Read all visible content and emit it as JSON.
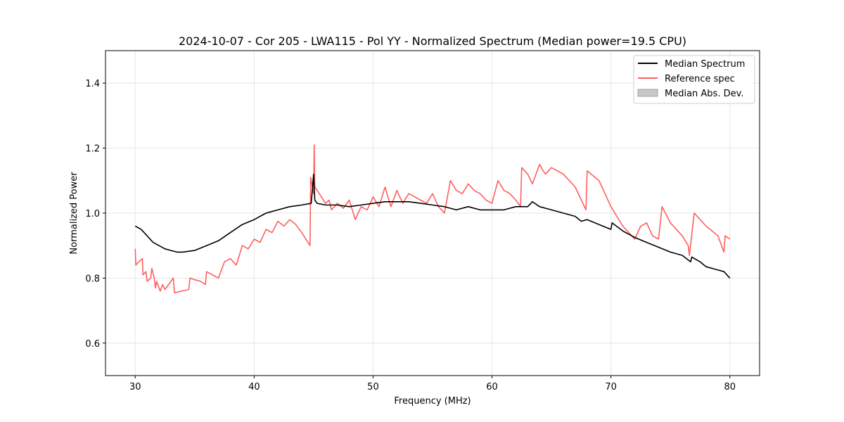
{
  "chart_data": {
    "type": "line",
    "title": "2024-10-07 - Cor 205 - LWA115 - Pol YY - Normalized Spectrum (Median power=19.5 CPU)",
    "xlabel": "Frequency (MHz)",
    "ylabel": "Normalized Power",
    "xlim": [
      27.5,
      82.5
    ],
    "ylim": [
      0.5,
      1.5
    ],
    "xticks": [
      30,
      40,
      50,
      60,
      70,
      80
    ],
    "yticks": [
      0.6,
      0.8,
      1.0,
      1.2,
      1.4
    ],
    "xtick_labels": [
      "30",
      "40",
      "50",
      "60",
      "70",
      "80"
    ],
    "ytick_labels": [
      "0.6",
      "0.8",
      "1.0",
      "1.2",
      "1.4"
    ],
    "grid": true,
    "legend_position": "top-right",
    "legend": [
      "Median Spectrum",
      "Reference spec",
      "Median Abs. Dev."
    ],
    "colors": {
      "median": "#000000",
      "reference": "#ff5f5f",
      "mad": "#c8c8c8"
    },
    "series": [
      {
        "name": "Median Spectrum",
        "x": [
          30.0,
          30.5,
          31.0,
          31.5,
          32.0,
          32.5,
          33.0,
          33.5,
          34.0,
          35.0,
          36.0,
          37.0,
          38.0,
          39.0,
          40.0,
          41.0,
          42.0,
          43.0,
          44.0,
          44.8,
          45.0,
          45.1,
          45.3,
          46.0,
          47.0,
          48.0,
          49.0,
          50.0,
          51.0,
          52.0,
          53.0,
          54.0,
          55.0,
          56.0,
          57.0,
          58.0,
          59.0,
          60.0,
          61.0,
          62.0,
          63.0,
          63.4,
          64.0,
          65.0,
          66.0,
          67.0,
          67.5,
          68.0,
          69.0,
          70.0,
          70.1,
          71.0,
          72.0,
          73.0,
          74.0,
          75.0,
          76.0,
          76.7,
          76.8,
          77.5,
          78.0,
          79.0,
          79.5,
          80.0
        ],
        "values": [
          0.96,
          0.95,
          0.93,
          0.91,
          0.9,
          0.89,
          0.885,
          0.88,
          0.88,
          0.885,
          0.9,
          0.915,
          0.94,
          0.965,
          0.98,
          1.0,
          1.01,
          1.02,
          1.025,
          1.03,
          1.12,
          1.04,
          1.03,
          1.025,
          1.025,
          1.02,
          1.025,
          1.03,
          1.035,
          1.035,
          1.035,
          1.03,
          1.025,
          1.02,
          1.01,
          1.02,
          1.01,
          1.01,
          1.01,
          1.02,
          1.02,
          1.035,
          1.02,
          1.01,
          1.0,
          0.99,
          0.975,
          0.98,
          0.965,
          0.95,
          0.97,
          0.945,
          0.925,
          0.91,
          0.895,
          0.88,
          0.87,
          0.85,
          0.865,
          0.85,
          0.835,
          0.825,
          0.82,
          0.8
        ]
      },
      {
        "name": "Reference spec",
        "x": [
          30.0,
          30.05,
          30.3,
          30.6,
          30.65,
          30.9,
          31.0,
          31.3,
          31.4,
          31.6,
          31.7,
          31.8,
          32.0,
          32.1,
          32.3,
          32.5,
          33.2,
          33.3,
          34.5,
          34.6,
          35.0,
          35.5,
          35.9,
          36.0,
          36.5,
          37.0,
          37.5,
          38.0,
          38.5,
          39.0,
          39.5,
          40.0,
          40.5,
          41.0,
          41.5,
          42.0,
          42.5,
          43.0,
          43.5,
          44.0,
          44.7,
          44.75,
          45.0,
          45.05,
          45.1,
          45.3,
          46.0,
          46.3,
          46.5,
          47.0,
          47.5,
          48.0,
          48.5,
          49.0,
          49.5,
          50.0,
          50.5,
          51.0,
          51.5,
          52.0,
          52.5,
          53.0,
          54.0,
          54.5,
          55.0,
          55.5,
          56.0,
          56.5,
          57.0,
          57.5,
          58.0,
          58.5,
          59.0,
          59.5,
          60.0,
          60.5,
          61.0,
          61.5,
          62.0,
          62.4,
          62.5,
          63.0,
          63.4,
          64.0,
          64.3,
          64.5,
          65.0,
          66.0,
          67.0,
          67.9,
          68.0,
          69.0,
          70.0,
          71.0,
          72.0,
          72.5,
          73.0,
          73.5,
          74.0,
          74.3,
          75.0,
          76.0,
          76.5,
          76.6,
          77.0,
          77.5,
          78.0,
          79.0,
          79.5,
          79.6,
          80.0
        ],
        "values": [
          0.89,
          0.84,
          0.85,
          0.86,
          0.81,
          0.82,
          0.79,
          0.8,
          0.83,
          0.8,
          0.77,
          0.79,
          0.77,
          0.76,
          0.78,
          0.765,
          0.8,
          0.755,
          0.765,
          0.8,
          0.795,
          0.79,
          0.78,
          0.82,
          0.81,
          0.8,
          0.85,
          0.86,
          0.84,
          0.9,
          0.89,
          0.92,
          0.91,
          0.95,
          0.94,
          0.975,
          0.96,
          0.98,
          0.965,
          0.94,
          0.9,
          1.11,
          1.06,
          1.21,
          1.08,
          1.07,
          1.03,
          1.04,
          1.01,
          1.03,
          1.015,
          1.04,
          0.98,
          1.02,
          1.01,
          1.05,
          1.02,
          1.08,
          1.02,
          1.07,
          1.03,
          1.06,
          1.04,
          1.03,
          1.06,
          1.02,
          1.0,
          1.1,
          1.07,
          1.06,
          1.09,
          1.07,
          1.06,
          1.04,
          1.03,
          1.1,
          1.07,
          1.06,
          1.04,
          1.02,
          1.14,
          1.12,
          1.09,
          1.15,
          1.13,
          1.12,
          1.14,
          1.12,
          1.08,
          1.01,
          1.13,
          1.1,
          1.02,
          0.96,
          0.92,
          0.96,
          0.97,
          0.93,
          0.92,
          1.02,
          0.97,
          0.93,
          0.9,
          0.87,
          1.0,
          0.98,
          0.96,
          0.93,
          0.88,
          0.93,
          0.92
        ]
      }
    ]
  }
}
